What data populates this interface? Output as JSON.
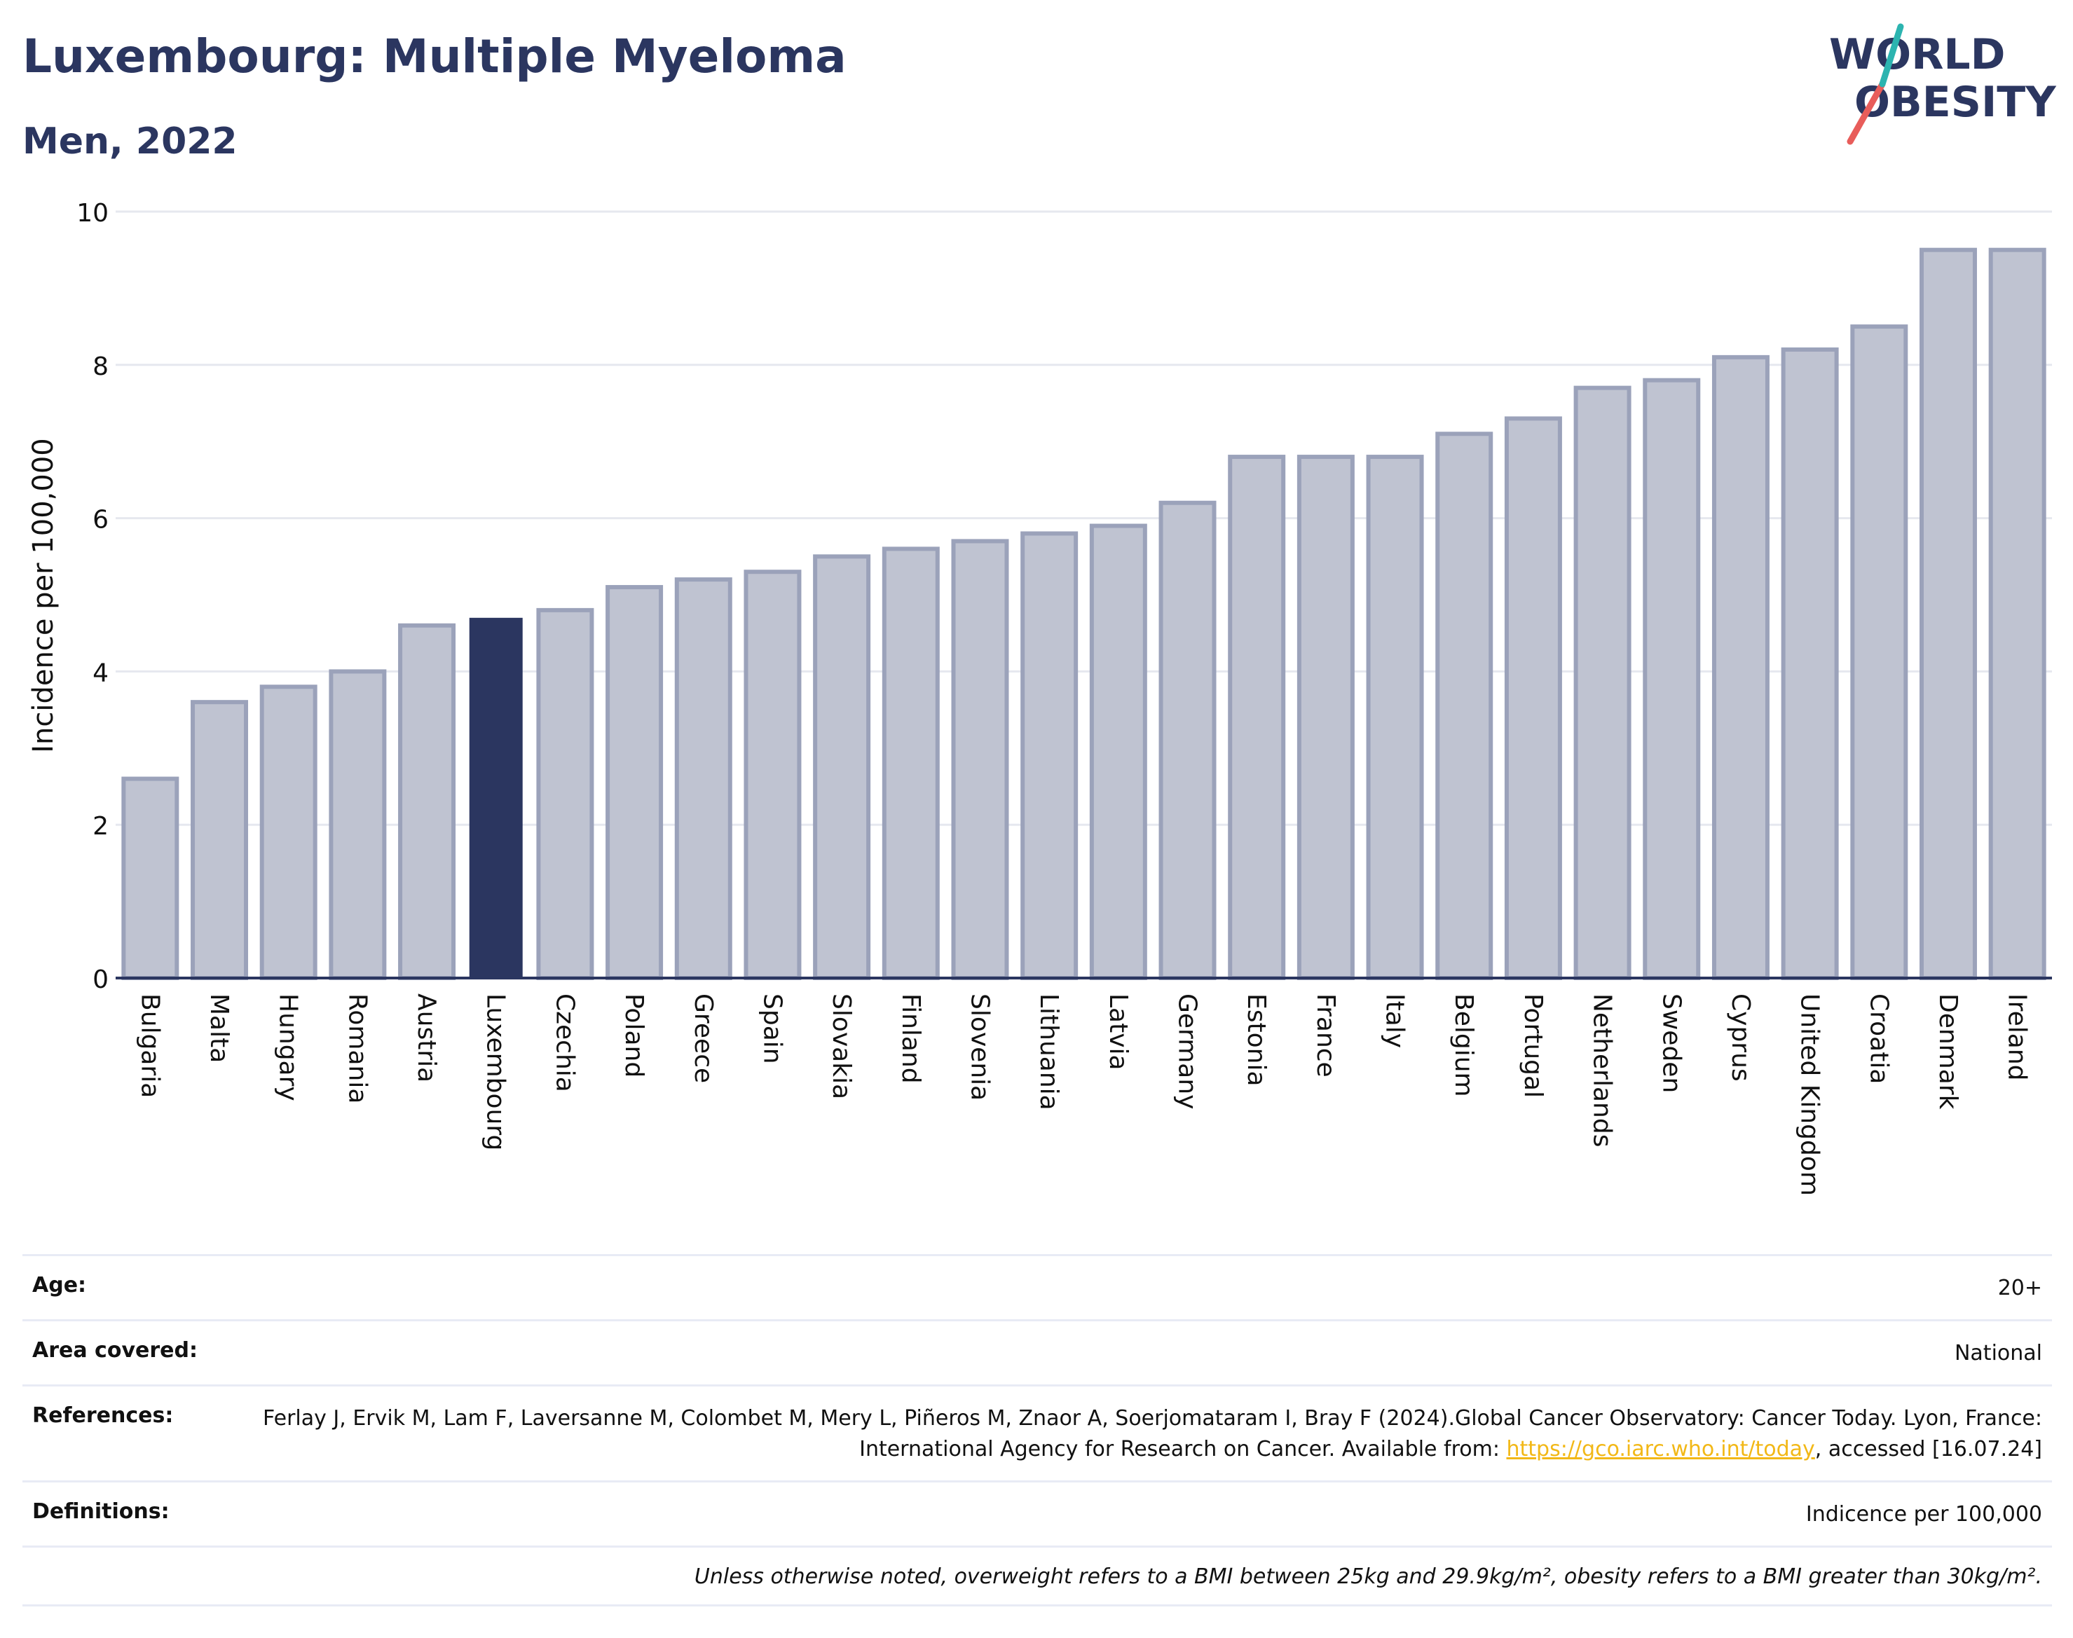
{
  "header": {
    "title": "Luxembourg: Multiple Myeloma",
    "subtitle": "Men, 2022"
  },
  "logo": {
    "line1": "WORLD",
    "line2": "OBESITY",
    "slash_colors": [
      "#e85d5a",
      "#2cb4b0"
    ]
  },
  "chart_data": {
    "type": "bar",
    "ylabel": "Incidence per 100,000",
    "ylim": [
      0,
      10
    ],
    "yticks": [
      0,
      2,
      4,
      6,
      8,
      10
    ],
    "grid": true,
    "highlight": "Luxembourg",
    "colors": {
      "bar": "#bfc3d1",
      "bar_edge": "#9ba2ba",
      "highlight": "#2b3660"
    },
    "categories": [
      "Bulgaria",
      "Malta",
      "Hungary",
      "Romania",
      "Austria",
      "Luxembourg",
      "Czechia",
      "Poland",
      "Greece",
      "Spain",
      "Slovakia",
      "Finland",
      "Slovenia",
      "Lithuania",
      "Latvia",
      "Germany",
      "Estonia",
      "France",
      "Italy",
      "Belgium",
      "Portugal",
      "Netherlands",
      "Sweden",
      "Cyprus",
      "United Kingdom",
      "Croatia",
      "Denmark",
      "Ireland"
    ],
    "values": [
      2.6,
      3.6,
      3.8,
      4.0,
      4.6,
      4.7,
      4.8,
      5.1,
      5.2,
      5.3,
      5.5,
      5.6,
      5.7,
      5.8,
      5.9,
      6.2,
      6.8,
      6.8,
      6.8,
      7.1,
      7.3,
      7.7,
      7.8,
      8.1,
      8.2,
      8.5,
      9.5,
      9.5
    ]
  },
  "meta": {
    "age_label": "Age:",
    "age_value": "20+",
    "area_label": "Area covered:",
    "area_value": "National",
    "references_label": "References:",
    "references_text_1": "Ferlay J, Ervik M, Lam F, Laversanne M, Colombet M, Mery L, Piñeros M, Znaor A, Soerjomataram I, Bray F (2024).Global Cancer Observatory: Cancer Today. Lyon, France: International Agency for Research on Cancer. Available from: ",
    "references_link": "https://gco.iarc.who.int/today",
    "references_text_2": ", accessed [16.07.24]",
    "definitions_label": "Definitions:",
    "definitions_value": "Indicence per 100,000",
    "note": "Unless otherwise noted, overweight refers to a BMI between 25kg and 29.9kg/m², obesity refers to a BMI greater than 30kg/m²."
  }
}
